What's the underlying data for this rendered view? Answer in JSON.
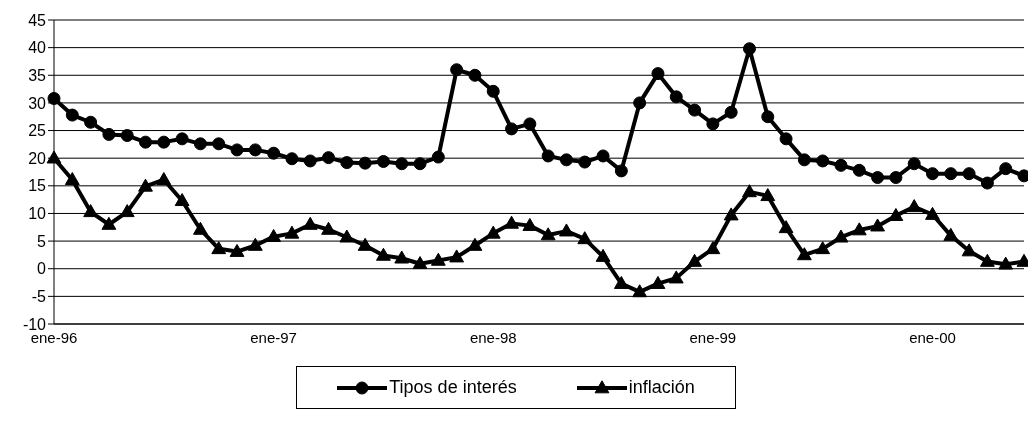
{
  "chart_data": {
    "type": "line",
    "categories": [
      "ene-96",
      null,
      null,
      null,
      null,
      null,
      null,
      null,
      null,
      null,
      null,
      null,
      "ene-97",
      null,
      null,
      null,
      null,
      null,
      null,
      null,
      null,
      null,
      null,
      null,
      "ene-98",
      null,
      null,
      null,
      null,
      null,
      null,
      null,
      null,
      null,
      null,
      null,
      "ene-99",
      null,
      null,
      null,
      null,
      null,
      null,
      null,
      null,
      null,
      null,
      null,
      "ene-00",
      null,
      null,
      null,
      null,
      null
    ],
    "series": [
      {
        "name": "Tipos de interés",
        "color": "#000000",
        "marker": "circle",
        "values": [
          30.8,
          27.8,
          26.5,
          24.3,
          24.1,
          22.9,
          22.9,
          23.5,
          22.6,
          22.6,
          21.5,
          21.5,
          20.9,
          19.9,
          19.5,
          20.1,
          19.2,
          19.1,
          19.4,
          19.0,
          19.0,
          20.2,
          36.0,
          35.0,
          32.1,
          25.3,
          26.2,
          20.4,
          19.7,
          19.3,
          20.4,
          17.7,
          30.0,
          35.3,
          31.1,
          28.7,
          26.2,
          28.3,
          39.8,
          27.5,
          23.5,
          19.7,
          19.5,
          18.7,
          17.8,
          16.5,
          16.5,
          19.0,
          17.2,
          17.2,
          17.2,
          15.5,
          18.1,
          16.8
        ]
      },
      {
        "name": "inflación",
        "color": "#000000",
        "marker": "triangle",
        "values": [
          20.0,
          16.1,
          10.3,
          8.0,
          10.3,
          14.9,
          16.1,
          12.3,
          7.1,
          3.6,
          3.1,
          4.2,
          5.8,
          6.4,
          8.0,
          7.1,
          5.7,
          4.2,
          2.4,
          1.9,
          0.9,
          1.5,
          2.1,
          4.2,
          6.4,
          8.2,
          7.8,
          6.1,
          6.8,
          5.4,
          2.2,
          -2.7,
          -4.2,
          -2.7,
          -1.7,
          1.3,
          3.6,
          9.7,
          13.9,
          13.2,
          7.4,
          2.5,
          3.6,
          5.7,
          7.0,
          7.7,
          9.6,
          11.2,
          9.8,
          6.0,
          3.2,
          1.3,
          0.8,
          1.3
        ]
      }
    ],
    "ylim": [
      -10,
      45
    ],
    "yticks": [
      -10,
      -5,
      0,
      5,
      10,
      15,
      20,
      25,
      30,
      35,
      40,
      45
    ],
    "grid": "y",
    "legend": "bottom",
    "line_style": "solid"
  }
}
